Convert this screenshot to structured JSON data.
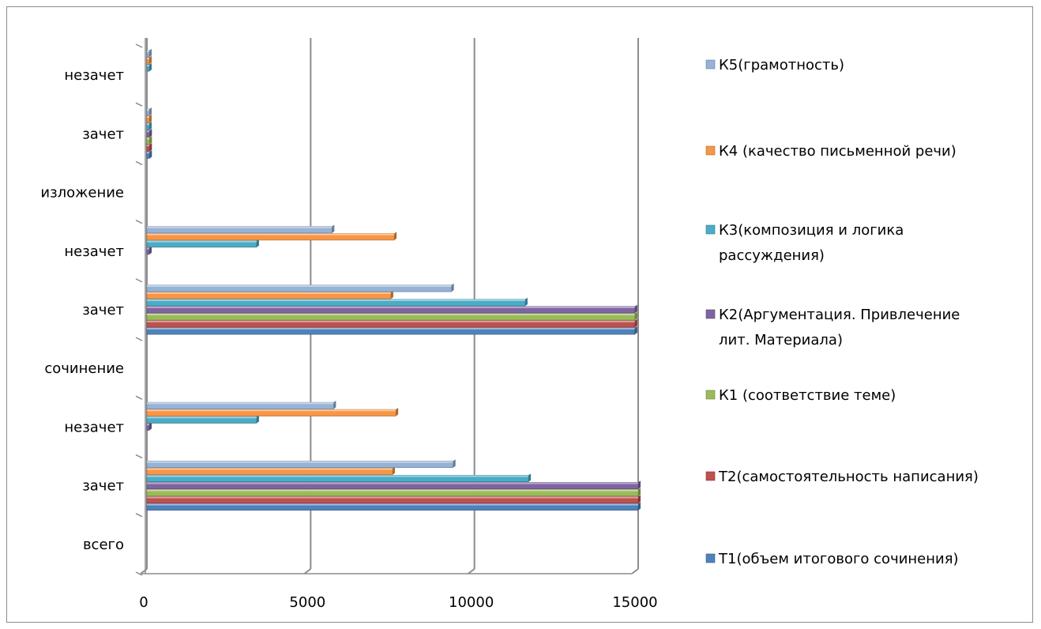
{
  "chart_data": {
    "type": "bar",
    "orientation": "horizontal",
    "style": "3d-clustered",
    "grid": true,
    "legend_position": "right",
    "xlim": [
      0,
      15000
    ],
    "x_ticks": [
      "0",
      "5000",
      "10000",
      "15000"
    ],
    "categories": [
      "всего",
      "зачет",
      "незачет",
      "сочинение",
      "зачет",
      "незачет",
      "изложение",
      "зачет",
      "незачет"
    ],
    "series": [
      {
        "name": "Т1(объем итогового сочинения)",
        "color": "#4f81bd",
        "values": [
          0,
          15000,
          0,
          0,
          14900,
          0,
          0,
          80,
          0
        ]
      },
      {
        "name": "Т2(самостоятельность написания)",
        "color": "#c0504d",
        "values": [
          0,
          15000,
          0,
          0,
          14900,
          0,
          0,
          80,
          0
        ]
      },
      {
        "name": "К1 (соответствие теме)",
        "color": "#9bbb59",
        "values": [
          0,
          15000,
          0,
          0,
          14900,
          0,
          0,
          80,
          0
        ]
      },
      {
        "name": "К2(Аргументация. Привлечение лит. Материала)",
        "color": "#8064a2",
        "values": [
          0,
          15000,
          10,
          0,
          14900,
          10,
          0,
          80,
          0
        ]
      },
      {
        "name": "К3(композиция и логика рассуждения)",
        "color": "#4bacc6",
        "values": [
          0,
          11650,
          3350,
          0,
          11550,
          3350,
          0,
          70,
          10
        ]
      },
      {
        "name": "К4 (качество письменной речи)",
        "color": "#f79646",
        "values": [
          0,
          7500,
          7600,
          0,
          7450,
          7550,
          0,
          40,
          40
        ]
      },
      {
        "name": "К5(грамотность)",
        "color": "#95b3d7",
        "values": [
          0,
          9350,
          5700,
          0,
          9300,
          5650,
          0,
          45,
          40
        ]
      }
    ]
  },
  "legend": {
    "items": [
      {
        "lines": [
          "К5(грамотность)"
        ],
        "color": "#95b3d7"
      },
      {
        "lines": [
          "К4 (качество письменной речи)"
        ],
        "color": "#f79646"
      },
      {
        "lines": [
          "К3(композиция и логика",
          "рассуждения)"
        ],
        "color": "#4bacc6"
      },
      {
        "lines": [
          "К2(Аргументация. Привлечение",
          "лит. Материала)"
        ],
        "color": "#8064a2"
      },
      {
        "lines": [
          "К1 (соответствие теме)"
        ],
        "color": "#9bbb59"
      },
      {
        "lines": [
          "Т2(самостоятельность написания)"
        ],
        "color": "#c0504d"
      },
      {
        "lines": [
          "Т1(объем итогового сочинения)"
        ],
        "color": "#4f81bd"
      }
    ]
  }
}
